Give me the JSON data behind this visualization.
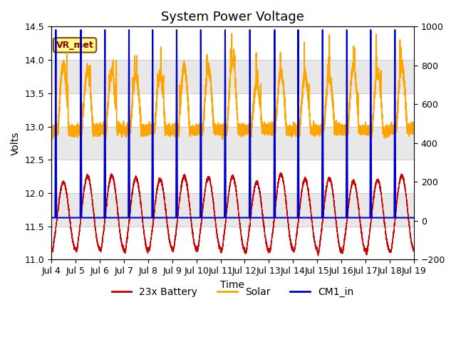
{
  "title": "System Power Voltage",
  "xlabel": "Time",
  "ylabel_left": "Volts",
  "ylim_left": [
    11.0,
    14.5
  ],
  "ylim_right": [
    -200,
    1000
  ],
  "yticks_left": [
    11.0,
    11.5,
    12.0,
    12.5,
    13.0,
    13.5,
    14.0,
    14.5
  ],
  "yticks_right": [
    -200,
    0,
    200,
    400,
    600,
    800,
    1000
  ],
  "xtick_labels": [
    "Jul 4",
    "Jul 5",
    "Jul 6",
    "Jul 7",
    "Jul 8",
    "Jul 9",
    "Jul 10",
    "Jul 11",
    "Jul 12",
    "Jul 13",
    "Jul 14",
    "Jul 15",
    "Jul 16",
    "Jul 17",
    "Jul 18",
    "Jul 19"
  ],
  "vr_met_label": "VR_met",
  "color_battery": "#cc0000",
  "color_solar": "#ffa500",
  "color_cm1": "#0000cc",
  "legend_labels": [
    "23x Battery",
    "Solar",
    "CM1_in"
  ],
  "title_fontsize": 13,
  "label_fontsize": 10,
  "tick_fontsize": 9,
  "legend_fontsize": 10,
  "grid_color": "#cccccc",
  "band_color": "#e8e8e8",
  "n_days": 15,
  "points_per_day": 480,
  "bg_color": "#ffffff"
}
